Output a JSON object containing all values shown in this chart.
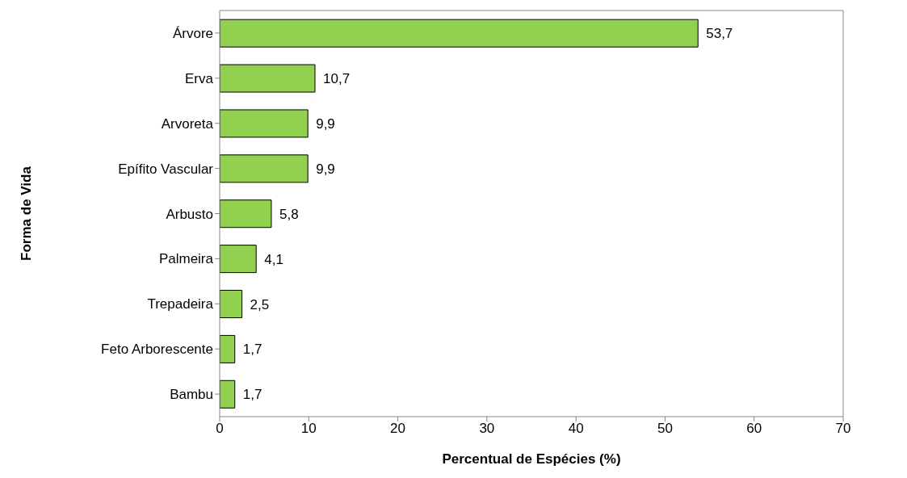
{
  "chart_data": {
    "type": "bar",
    "orientation": "horizontal",
    "xlabel": "Percentual de Espécies (%)",
    "ylabel": "Forma de Vida",
    "categories": [
      "Árvore",
      "Erva",
      "Arvoreta",
      "Epífito Vascular",
      "Arbusto",
      "Palmeira",
      "Trepadeira",
      "Feto Arborescente",
      "Bambu"
    ],
    "values": [
      53.7,
      10.7,
      9.9,
      9.9,
      5.8,
      4.1,
      2.5,
      1.7,
      1.7
    ],
    "value_labels": [
      "53,7",
      "10,7",
      "9,9",
      "9,9",
      "5,8",
      "4,1",
      "2,5",
      "1,7",
      "1,7"
    ],
    "color": "#92d050",
    "xlim": [
      0,
      70
    ],
    "xticks": [
      0,
      10,
      20,
      30,
      40,
      50,
      60,
      70
    ],
    "grid": false
  }
}
